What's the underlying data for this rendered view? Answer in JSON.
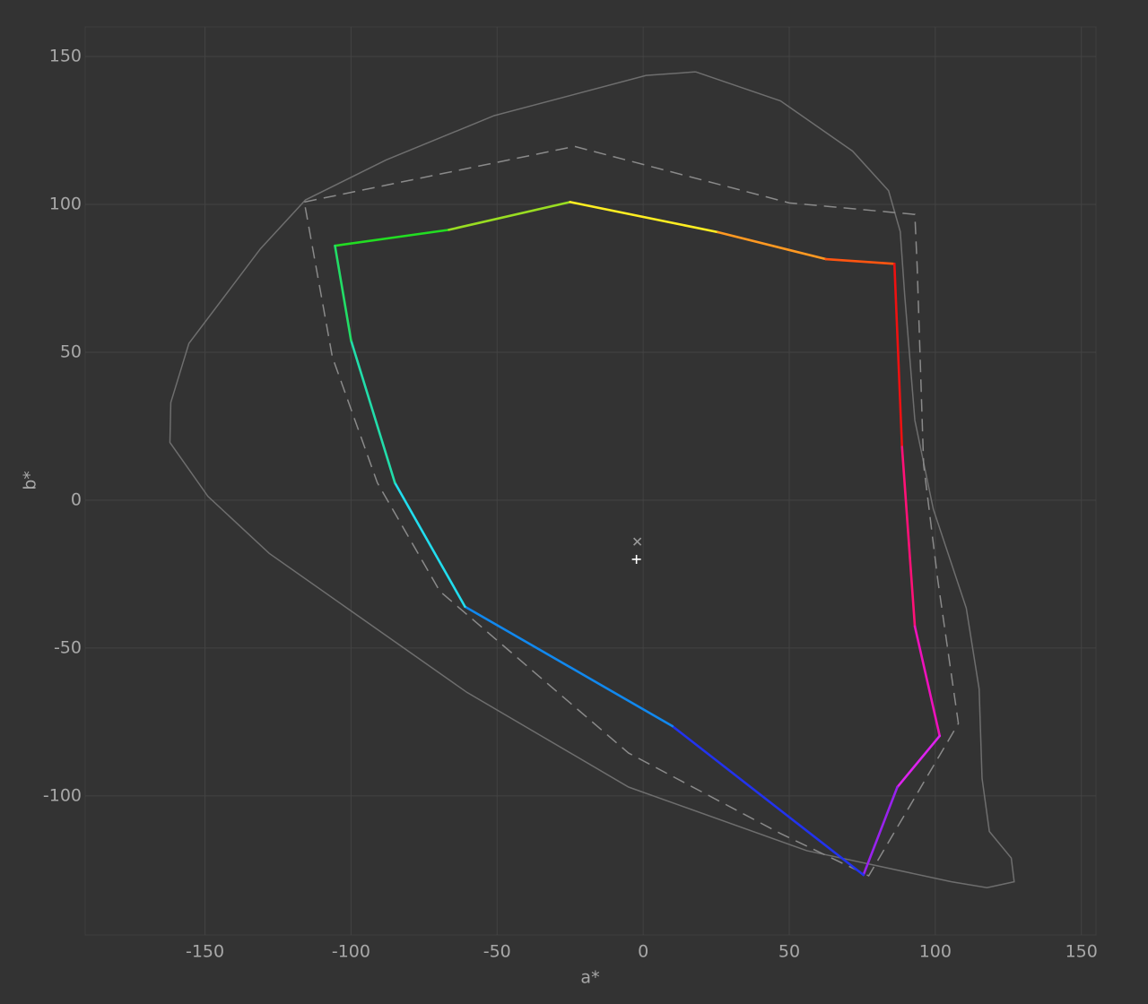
{
  "chart_data": {
    "type": "line",
    "xlabel": "a*",
    "ylabel": "b*",
    "xlim": [
      -191,
      155
    ],
    "ylim": [
      -147,
      160
    ],
    "xticks": [
      -150,
      -100,
      -50,
      0,
      50,
      100,
      150
    ],
    "yticks": [
      -100,
      -50,
      0,
      50,
      100,
      150
    ],
    "grid": true,
    "series": [
      {
        "color": "#6e6e6e",
        "dash": "solid",
        "x": [
          18,
          47,
          71.7,
          84,
          88,
          89.5,
          93,
          99.3,
          110.6,
          115,
          116,
          118.5,
          126,
          127,
          117.7,
          105.5,
          56,
          -5,
          -60.3,
          -128,
          -149,
          -162,
          -161.7,
          -155.5,
          -131,
          -115.6,
          -88,
          -51,
          1,
          18
        ],
        "values": [
          144.8,
          135,
          118,
          104.6,
          90.8,
          69.6,
          27,
          -3,
          -36.5,
          -63.8,
          -94,
          -112,
          -121,
          -129,
          -131,
          -129,
          -118.5,
          -97,
          -65,
          -18,
          1.3,
          19.5,
          33,
          53,
          85,
          101.5,
          115,
          130,
          143.6,
          144.8
        ]
      },
      {
        "color": "#8a8a8a",
        "dash": "dashed",
        "x": [
          -116,
          -23.5,
          50,
          93,
          93.8,
          96,
          100.9,
          107.9,
          77.2,
          47,
          -5,
          -69.6,
          -91,
          -106.4,
          -116
        ],
        "values": [
          100.8,
          119.6,
          100.5,
          96.6,
          78.7,
          12,
          -27.4,
          -75.5,
          -127,
          -112.7,
          -85.5,
          -30.8,
          5.9,
          48.4,
          100.8
        ]
      },
      {
        "dash": "solid",
        "x": [
          -105.5,
          -66.5,
          -25,
          25.6,
          62.5,
          86,
          88.6,
          93,
          101.5,
          87,
          75.4,
          10,
          -61,
          -85,
          -100,
          -105.5
        ],
        "values": [
          86,
          91.4,
          100.8,
          90.6,
          81.5,
          79.9,
          18,
          -42.7,
          -79.7,
          -97,
          -126.7,
          -76.4,
          -36,
          5.9,
          54,
          86
        ],
        "colors": [
          "#22dd22",
          "#99dd22",
          "#ffee22",
          "#ff9922",
          "#ff5511",
          "#ee1111",
          "#ff1177",
          "#ee11bb",
          "#dd22ee",
          "#9922ee",
          "#2233ee",
          "#1188ee",
          "#22ddee",
          "#22ddaa",
          "#22dd66",
          "#22dd22"
        ]
      },
      {
        "marker": "x",
        "color": "#9a9a9a",
        "x": [
          -2
        ],
        "values": [
          -14
        ]
      },
      {
        "marker": "+",
        "color": "#ffffff",
        "x": [
          -2.3
        ],
        "values": [
          -20
        ]
      }
    ]
  }
}
